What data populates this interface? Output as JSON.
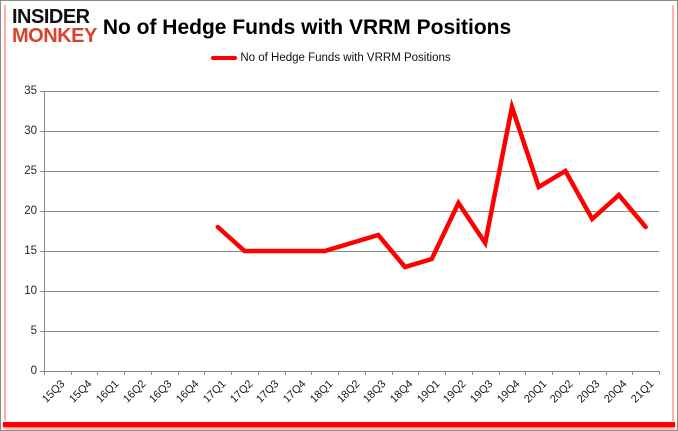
{
  "logo": {
    "line1": "INSIDER",
    "line2": "MONKEY",
    "color1": "#111111",
    "color2": "#d9432c"
  },
  "header": {
    "title": "No of Hedge Funds with VRRM Positions"
  },
  "legend": {
    "label": "No of Hedge Funds with VRRM Positions",
    "swatch_color": "#fe0000"
  },
  "chart_data": {
    "type": "line",
    "title": "No of Hedge Funds with VRRM Positions",
    "categories": [
      "15Q3",
      "15Q4",
      "16Q1",
      "16Q2",
      "16Q3",
      "16Q4",
      "17Q1",
      "17Q2",
      "17Q3",
      "17Q4",
      "18Q1",
      "18Q2",
      "18Q3",
      "18Q4",
      "19Q1",
      "19Q2",
      "19Q3",
      "19Q4",
      "20Q1",
      "20Q2",
      "20Q3",
      "20Q4",
      "21Q1"
    ],
    "series": [
      {
        "name": "No of Hedge Funds with VRRM Positions",
        "color": "#fe0000",
        "values": [
          null,
          null,
          null,
          null,
          null,
          null,
          18,
          15,
          15,
          15,
          15,
          16,
          17,
          13,
          14,
          21,
          16,
          33,
          23,
          25,
          19,
          22,
          18
        ]
      }
    ],
    "xlabel": "",
    "ylabel": "",
    "ylim": [
      0,
      35
    ],
    "ytick_step": 5,
    "grid": true,
    "legend_position": "top",
    "gridline_color": "#8a8a8a",
    "axis_color": "#8a8a8a",
    "tick_label_color": "#262626"
  }
}
